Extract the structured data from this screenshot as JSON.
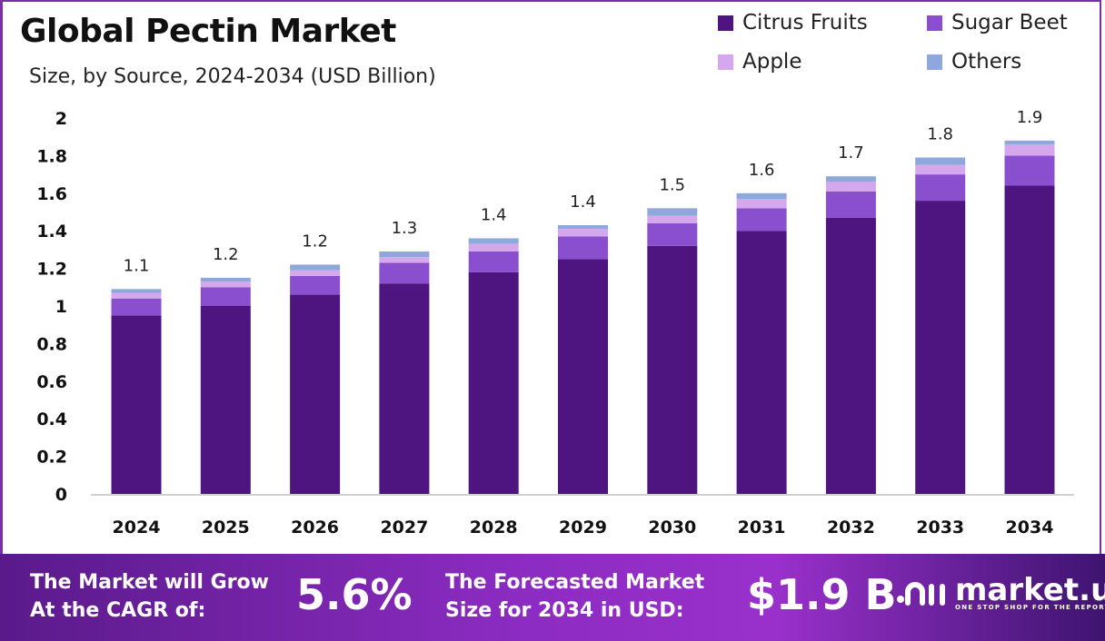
{
  "chart_data": {
    "type": "bar",
    "stacked": true,
    "title": "Global Pectin Market",
    "subtitle": "Size, by Source, 2024-2034 (USD Billion)",
    "categories": [
      "2024",
      "2025",
      "2026",
      "2027",
      "2028",
      "2029",
      "2030",
      "2031",
      "2032",
      "2033",
      "2034"
    ],
    "series": [
      {
        "name": "Citrus Fruits",
        "color": "#4e1580",
        "values": [
          0.95,
          1.0,
          1.06,
          1.12,
          1.18,
          1.25,
          1.32,
          1.4,
          1.47,
          1.56,
          1.64
        ]
      },
      {
        "name": "Sugar Beet",
        "color": "#8a4fcf",
        "values": [
          0.09,
          0.1,
          0.1,
          0.11,
          0.11,
          0.12,
          0.12,
          0.12,
          0.14,
          0.14,
          0.16
        ]
      },
      {
        "name": "Apple",
        "color": "#d5a8ee",
        "values": [
          0.03,
          0.03,
          0.03,
          0.03,
          0.04,
          0.04,
          0.04,
          0.05,
          0.05,
          0.05,
          0.06
        ]
      },
      {
        "name": "Others",
        "color": "#8fa8dc",
        "values": [
          0.02,
          0.02,
          0.03,
          0.03,
          0.03,
          0.02,
          0.04,
          0.03,
          0.03,
          0.04,
          0.02
        ]
      }
    ],
    "total_labels": [
      "1.1",
      "1.2",
      "1.2",
      "1.3",
      "1.4",
      "1.4",
      "1.5",
      "1.6",
      "1.7",
      "1.8",
      "1.9"
    ],
    "yticks": [
      "0",
      "0.2",
      "0.4",
      "0.6",
      "0.8",
      "1",
      "1.2",
      "1.4",
      "1.6",
      "1.8",
      "2"
    ],
    "ylim": [
      0,
      2
    ],
    "grid": false,
    "legend_position": "top-right"
  },
  "footer": {
    "cagr_text_1": "The Market will Grow",
    "cagr_text_2": "At the CAGR of:",
    "cagr_value": "5.6%",
    "forecast_text_1": "The Forecasted Market",
    "forecast_text_2": "Size for 2034 in USD:",
    "forecast_value": "$1.9 B",
    "logo_name": "market.us",
    "logo_tagline": "ONE STOP SHOP FOR THE REPORTS"
  }
}
